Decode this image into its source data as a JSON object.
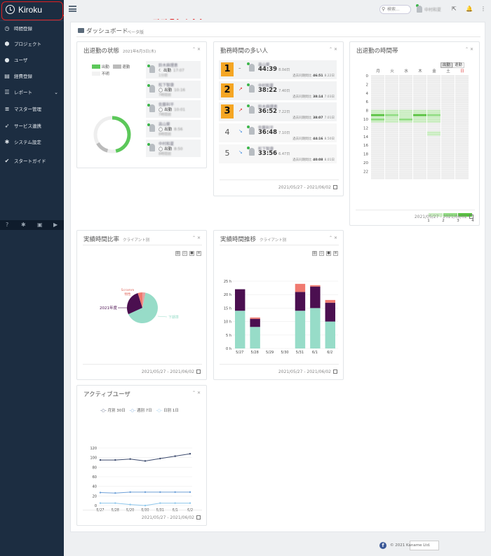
{
  "app": {
    "name": "Kiroku",
    "callout": "ココをクリック"
  },
  "sidebar": {
    "items": [
      {
        "label": "時間登録",
        "icon": "clock-icon"
      },
      {
        "label": "プロジェクト",
        "icon": "cubes-icon"
      },
      {
        "label": "ユーザ",
        "icon": "user-icon"
      },
      {
        "label": "経費登録",
        "icon": "file-icon"
      },
      {
        "label": "レポート",
        "icon": "list-icon",
        "chevron": "⌄"
      },
      {
        "label": "マスター管理",
        "icon": "database-icon"
      },
      {
        "label": "サービス連携",
        "icon": "rocket-icon"
      },
      {
        "label": "システム設定",
        "icon": "gear-icon"
      },
      {
        "label": "スタートガイド",
        "icon": "check-icon"
      }
    ]
  },
  "topbar": {
    "search_placeholder": "検索...",
    "user_name": "中村和夏"
  },
  "dashboard": {
    "title": "ダッシュボード",
    "tag": "ベータ版"
  },
  "attendance": {
    "title": "出退勤の状態",
    "date": "2021年6月3日(木)",
    "legend": [
      "出勤",
      "退勤",
      "不明"
    ],
    "people": [
      {
        "name": "鈴木麻理恵",
        "status": "出勤",
        "time": "17:07",
        "ago": "1分前",
        "icon": "☾"
      },
      {
        "name": "松下智康",
        "status": "出勤",
        "time": "10:16",
        "ago": "7時間前",
        "icon": "◯"
      },
      {
        "name": "佐藤利平",
        "status": "出勤",
        "time": "10:01",
        "ago": "7時間前",
        "icon": "◯"
      },
      {
        "name": "高山葵",
        "status": "出勤",
        "time": "8:56",
        "ago": "8時間前",
        "icon": "◯"
      },
      {
        "name": "中村和夏",
        "status": "出勤",
        "time": "8:50",
        "ago": "8時間前",
        "icon": "◯"
      }
    ]
  },
  "ranking": {
    "title": "勤務時間の多い人",
    "rows": [
      {
        "rank": "1",
        "trend": "–",
        "name": "高山葵",
        "time": "44:39",
        "days": "8.0d日",
        "prev_label": "過去同期間比",
        "prev": "46:51",
        "prev_days": "8.22日"
      },
      {
        "rank": "2",
        "trend": "↗",
        "name": "中村和夏",
        "time": "38:22",
        "days": "7.40日",
        "prev_label": "過去同期間比",
        "prev": "38:14",
        "prev_days": "7.03日"
      },
      {
        "rank": "3",
        "trend": "↗",
        "name": "鈴木麻理恵",
        "time": "36:52",
        "days": "7.22日",
        "prev_label": "過去同期間比",
        "prev": "38:07",
        "prev_days": "7.01日"
      },
      {
        "rank": "4",
        "trend": "↘",
        "name": "佐藤利平",
        "time": "36:48",
        "days": "7.10日",
        "prev_label": "過去同期間比",
        "prev": "44:16",
        "prev_days": "8.50日"
      },
      {
        "rank": "5",
        "trend": "↘",
        "name": "松下智康",
        "time": "33:56",
        "days": "6.47日",
        "prev_label": "過去同期間比",
        "prev": "40:08",
        "prev_days": "8.01日"
      }
    ],
    "date_range": "2021/05/27 - 2021/06/02"
  },
  "heatmap": {
    "title": "出退勤の時間帯",
    "toggle": [
      "出勤",
      "退勤"
    ],
    "days": [
      "月",
      "火",
      "水",
      "木",
      "金",
      "土",
      "日"
    ],
    "hours": [
      "0",
      "2",
      "4",
      "6",
      "8",
      "10",
      "12",
      "14",
      "16",
      "18",
      "20",
      "22"
    ],
    "legend": [
      "1",
      "2",
      "3",
      "4"
    ],
    "date_range": "2021/05/27 - 2021/06/02",
    "colors": {
      "level1": "#c9ecc0",
      "level2": "#8fdc80",
      "level3": "#55c13c",
      "empty": "#ededed",
      "sunday": "#e04040"
    }
  },
  "ratio": {
    "title": "実績時間比率",
    "sub": "クライアント別",
    "labels": [
      "Scramm",
      "物性",
      "2021年度",
      "下期準"
    ],
    "date_range": "2021/05/27 - 2021/06/02"
  },
  "trend": {
    "title": "実績時間推移",
    "sub": "クライアント別",
    "date_range": "2021/05/27 - 2021/06/02"
  },
  "active": {
    "title": "アクティブユーザ",
    "legend": [
      "月別 30日",
      "週別 7日",
      "日別 1日"
    ],
    "date_range": "2021/05/27 - 2021/06/02"
  },
  "chart_data": [
    {
      "type": "pie",
      "title": "実績時間比率",
      "labels": [
        "下期準",
        "2021年度",
        "Scramm",
        "物性"
      ],
      "values": [
        65,
        27,
        5,
        3
      ],
      "colors": [
        "#97dcc8",
        "#4b0f50",
        "#f07a70",
        "#e6a0a0"
      ]
    },
    {
      "type": "bar",
      "title": "実績時間推移",
      "categories": [
        "5/27",
        "5/28",
        "5/29",
        "5/30",
        "5/31",
        "6/1",
        "6/2"
      ],
      "ylabel": "",
      "ylim": [
        0,
        25
      ],
      "yticks": [
        "0 h",
        "5 h",
        "10 h",
        "15 h",
        "20 h",
        "25 h"
      ],
      "series": [
        {
          "values": [
            14,
            8,
            0,
            0,
            14,
            15,
            10
          ],
          "color": "#97dcc8"
        },
        {
          "values": [
            8,
            3,
            0,
            0,
            7,
            8,
            7
          ],
          "color": "#4b0f50"
        },
        {
          "values": [
            0,
            0.5,
            0,
            0,
            3,
            0.5,
            1
          ],
          "color": "#f07a70"
        }
      ]
    },
    {
      "type": "line",
      "title": "アクティブユーザ",
      "categories": [
        "5/27",
        "5/28",
        "5/29",
        "5/30",
        "5/31",
        "6/1",
        "6/2"
      ],
      "ylim": [
        0,
        120
      ],
      "yticks": [
        "0",
        "20",
        "40",
        "60",
        "80",
        "100",
        "120"
      ],
      "series": [
        {
          "name": "月別 30日",
          "values": [
            95,
            95,
            97,
            93,
            98,
            103,
            108
          ],
          "color": "#3d4b6e"
        },
        {
          "name": "週別 7日",
          "values": [
            27,
            26,
            28,
            28,
            28,
            28,
            28
          ],
          "color": "#6ea0d8"
        },
        {
          "name": "日別 1日",
          "values": [
            5,
            5,
            2,
            0,
            5,
            5,
            5
          ],
          "color": "#8ec7ec"
        }
      ]
    }
  ],
  "footer": {
    "copyright": "© 2021 Kaname Ltd.",
    "fb": "f"
  }
}
